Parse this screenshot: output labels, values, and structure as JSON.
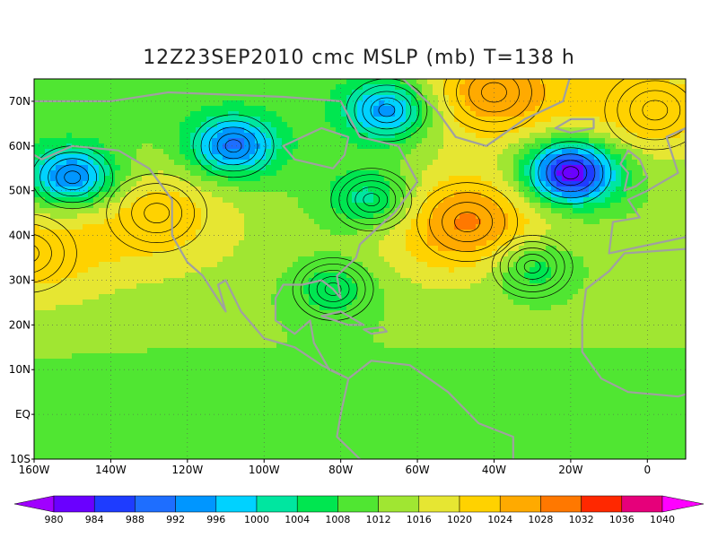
{
  "title": "12Z23SEP2010 cmc MSLP (mb) T=138 h",
  "map": {
    "lon_labels": [
      "160W",
      "140W",
      "120W",
      "100W",
      "80W",
      "60W",
      "40W",
      "20W",
      "0"
    ],
    "lat_labels": [
      "70N",
      "60N",
      "50N",
      "40N",
      "30N",
      "20N",
      "10N",
      "EQ",
      "10S"
    ],
    "lon_range": [
      -160,
      10
    ],
    "lat_range": [
      -10,
      75
    ],
    "grid": "dotted",
    "coastline_color": "#a0a0a0"
  },
  "colorbar": {
    "levels": [
      "980",
      "984",
      "988",
      "992",
      "996",
      "1000",
      "1004",
      "1008",
      "1012",
      "1016",
      "1020",
      "1024",
      "1028",
      "1032",
      "1036",
      "1040"
    ],
    "colors": [
      "#a000ff",
      "#6a00ff",
      "#1e3cff",
      "#1e6eff",
      "#0096ff",
      "#00d2ff",
      "#00e6a0",
      "#00e650",
      "#50e632",
      "#a0e632",
      "#e6e632",
      "#ffd200",
      "#ffaa00",
      "#ff7800",
      "#ff2800",
      "#e6007a",
      "#ff00ff"
    ]
  },
  "systems": [
    {
      "type": "low",
      "name": "Low",
      "lon": -150,
      "lat": 53,
      "p": 990
    },
    {
      "type": "low",
      "name": "Low",
      "lon": -108,
      "lat": 60,
      "p": 991
    },
    {
      "type": "low",
      "name": "Low",
      "lon": -68,
      "lat": 68,
      "p": 993
    },
    {
      "type": "low",
      "name": "Low",
      "lon": -72,
      "lat": 48,
      "p": 1000
    },
    {
      "type": "low",
      "name": "Low",
      "lon": -82,
      "lat": 28,
      "p": 1004
    },
    {
      "type": "low",
      "name": "Low",
      "lon": -30,
      "lat": 33,
      "p": 1002
    },
    {
      "type": "low",
      "name": "Low",
      "lon": -20,
      "lat": 54,
      "p": 978
    },
    {
      "type": "high",
      "name": "High",
      "lon": -47,
      "lat": 43,
      "p": 1028
    },
    {
      "type": "high",
      "name": "High",
      "lon": -40,
      "lat": 72,
      "p": 1028
    },
    {
      "type": "high",
      "name": "High",
      "lon": 2,
      "lat": 68,
      "p": 1024
    },
    {
      "type": "high",
      "name": "High",
      "lon": -128,
      "lat": 45,
      "p": 1022
    },
    {
      "type": "high",
      "name": "High",
      "lon": -162,
      "lat": 36,
      "p": 1021
    }
  ]
}
